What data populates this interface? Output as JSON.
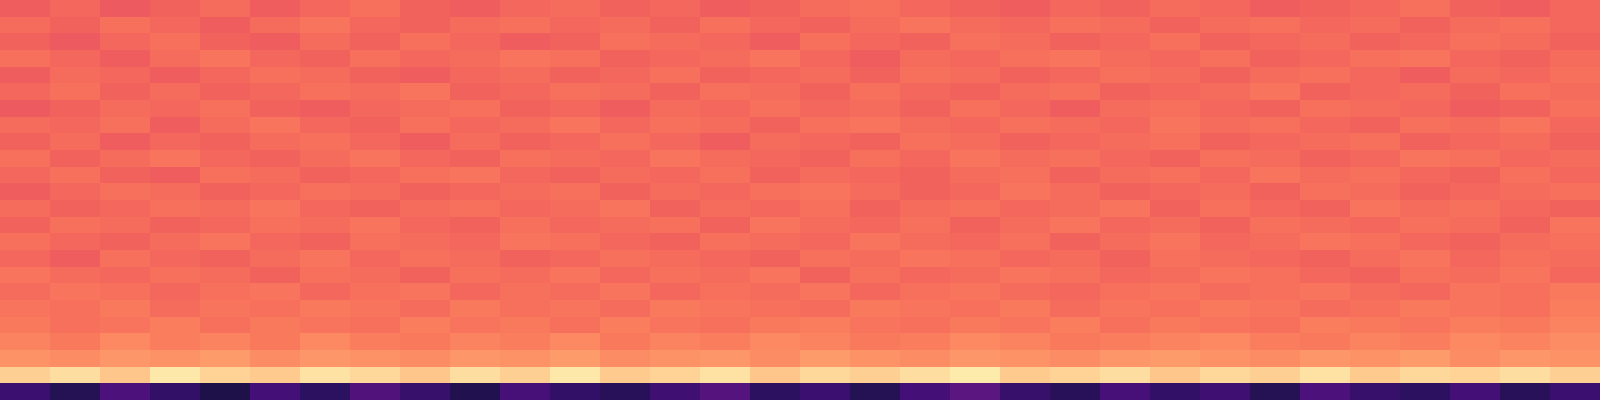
{
  "chart_data": {
    "type": "heatmap",
    "color": "magma",
    "tick_labels": false,
    "values": [
      [
        0.66,
        0.68,
        0.65,
        0.67,
        0.69,
        0.66,
        0.68,
        0.7,
        0.67,
        0.66,
        0.68,
        0.69,
        0.67,
        0.68,
        0.66,
        0.67,
        0.69,
        0.7,
        0.68,
        0.67,
        0.66,
        0.68,
        0.67,
        0.69,
        0.68,
        0.66,
        0.67,
        0.68,
        0.7,
        0.67,
        0.66,
        0.68
      ],
      [
        0.69,
        0.67,
        0.7,
        0.68,
        0.66,
        0.69,
        0.71,
        0.68,
        0.67,
        0.69,
        0.7,
        0.68,
        0.69,
        0.67,
        0.7,
        0.68,
        0.67,
        0.69,
        0.71,
        0.69,
        0.68,
        0.7,
        0.69,
        0.67,
        0.69,
        0.7,
        0.68,
        0.69,
        0.67,
        0.69,
        0.7,
        0.68
      ],
      [
        0.67,
        0.65,
        0.68,
        0.7,
        0.67,
        0.66,
        0.69,
        0.67,
        0.7,
        0.68,
        0.66,
        0.67,
        0.7,
        0.69,
        0.68,
        0.66,
        0.7,
        0.68,
        0.67,
        0.7,
        0.69,
        0.67,
        0.68,
        0.7,
        0.67,
        0.68,
        0.69,
        0.67,
        0.68,
        0.7,
        0.69,
        0.67
      ],
      [
        0.7,
        0.68,
        0.66,
        0.69,
        0.71,
        0.68,
        0.67,
        0.7,
        0.68,
        0.69,
        0.71,
        0.7,
        0.67,
        0.68,
        0.69,
        0.71,
        0.68,
        0.66,
        0.69,
        0.68,
        0.7,
        0.71,
        0.69,
        0.68,
        0.7,
        0.67,
        0.68,
        0.7,
        0.71,
        0.68,
        0.67,
        0.69
      ],
      [
        0.66,
        0.69,
        0.68,
        0.66,
        0.68,
        0.7,
        0.69,
        0.67,
        0.66,
        0.68,
        0.69,
        0.67,
        0.68,
        0.7,
        0.67,
        0.68,
        0.69,
        0.67,
        0.7,
        0.69,
        0.67,
        0.68,
        0.7,
        0.69,
        0.67,
        0.69,
        0.7,
        0.68,
        0.66,
        0.69,
        0.68,
        0.7
      ],
      [
        0.68,
        0.7,
        0.67,
        0.69,
        0.67,
        0.68,
        0.7,
        0.69,
        0.71,
        0.67,
        0.68,
        0.7,
        0.69,
        0.67,
        0.7,
        0.69,
        0.67,
        0.7,
        0.68,
        0.67,
        0.69,
        0.7,
        0.67,
        0.68,
        0.69,
        0.71,
        0.67,
        0.68,
        0.69,
        0.67,
        0.7,
        0.69
      ],
      [
        0.65,
        0.67,
        0.69,
        0.68,
        0.7,
        0.67,
        0.66,
        0.68,
        0.69,
        0.7,
        0.67,
        0.68,
        0.66,
        0.69,
        0.68,
        0.7,
        0.68,
        0.69,
        0.67,
        0.7,
        0.68,
        0.66,
        0.69,
        0.7,
        0.68,
        0.67,
        0.7,
        0.69,
        0.68,
        0.66,
        0.67,
        0.7
      ],
      [
        0.69,
        0.68,
        0.7,
        0.66,
        0.69,
        0.71,
        0.68,
        0.67,
        0.7,
        0.68,
        0.69,
        0.71,
        0.68,
        0.7,
        0.69,
        0.67,
        0.7,
        0.71,
        0.69,
        0.68,
        0.7,
        0.69,
        0.68,
        0.71,
        0.69,
        0.7,
        0.68,
        0.67,
        0.7,
        0.69,
        0.71,
        0.68
      ],
      [
        0.67,
        0.69,
        0.66,
        0.68,
        0.67,
        0.69,
        0.7,
        0.68,
        0.66,
        0.69,
        0.67,
        0.68,
        0.7,
        0.68,
        0.66,
        0.69,
        0.68,
        0.67,
        0.7,
        0.69,
        0.67,
        0.68,
        0.69,
        0.7,
        0.67,
        0.68,
        0.69,
        0.7,
        0.67,
        0.68,
        0.69,
        0.67
      ],
      [
        0.7,
        0.67,
        0.69,
        0.71,
        0.68,
        0.67,
        0.69,
        0.71,
        0.68,
        0.67,
        0.7,
        0.69,
        0.68,
        0.71,
        0.69,
        0.68,
        0.67,
        0.7,
        0.68,
        0.71,
        0.69,
        0.7,
        0.68,
        0.67,
        0.7,
        0.69,
        0.67,
        0.68,
        0.71,
        0.7,
        0.68,
        0.69
      ],
      [
        0.68,
        0.7,
        0.67,
        0.66,
        0.7,
        0.69,
        0.67,
        0.68,
        0.7,
        0.71,
        0.68,
        0.67,
        0.69,
        0.68,
        0.7,
        0.67,
        0.69,
        0.68,
        0.67,
        0.69,
        0.7,
        0.67,
        0.69,
        0.7,
        0.68,
        0.71,
        0.69,
        0.7,
        0.68,
        0.67,
        0.7,
        0.68
      ],
      [
        0.66,
        0.68,
        0.7,
        0.69,
        0.67,
        0.68,
        0.7,
        0.69,
        0.67,
        0.68,
        0.69,
        0.7,
        0.67,
        0.69,
        0.68,
        0.7,
        0.71,
        0.69,
        0.67,
        0.68,
        0.71,
        0.69,
        0.67,
        0.68,
        0.69,
        0.67,
        0.7,
        0.69,
        0.67,
        0.68,
        0.69,
        0.7
      ],
      [
        0.69,
        0.67,
        0.68,
        0.7,
        0.69,
        0.71,
        0.68,
        0.67,
        0.69,
        0.7,
        0.68,
        0.69,
        0.71,
        0.67,
        0.69,
        0.68,
        0.7,
        0.67,
        0.69,
        0.7,
        0.68,
        0.69,
        0.71,
        0.67,
        0.7,
        0.68,
        0.67,
        0.71,
        0.69,
        0.7,
        0.68,
        0.67
      ],
      [
        0.67,
        0.7,
        0.69,
        0.67,
        0.68,
        0.7,
        0.69,
        0.71,
        0.68,
        0.67,
        0.7,
        0.68,
        0.69,
        0.7,
        0.67,
        0.71,
        0.69,
        0.68,
        0.7,
        0.67,
        0.69,
        0.71,
        0.68,
        0.69,
        0.67,
        0.7,
        0.69,
        0.68,
        0.7,
        0.69,
        0.67,
        0.71
      ],
      [
        0.7,
        0.68,
        0.67,
        0.69,
        0.71,
        0.68,
        0.67,
        0.7,
        0.69,
        0.68,
        0.71,
        0.7,
        0.68,
        0.67,
        0.7,
        0.69,
        0.68,
        0.71,
        0.69,
        0.68,
        0.7,
        0.67,
        0.69,
        0.71,
        0.68,
        0.69,
        0.71,
        0.7,
        0.68,
        0.67,
        0.69,
        0.7
      ],
      [
        0.68,
        0.66,
        0.7,
        0.68,
        0.67,
        0.69,
        0.71,
        0.68,
        0.7,
        0.69,
        0.67,
        0.68,
        0.7,
        0.69,
        0.68,
        0.67,
        0.7,
        0.69,
        0.71,
        0.7,
        0.68,
        0.69,
        0.67,
        0.7,
        0.69,
        0.68,
        0.67,
        0.69,
        0.71,
        0.68,
        0.7,
        0.69
      ],
      [
        0.71,
        0.69,
        0.68,
        0.7,
        0.69,
        0.67,
        0.7,
        0.69,
        0.67,
        0.7,
        0.69,
        0.71,
        0.68,
        0.7,
        0.69,
        0.71,
        0.67,
        0.7,
        0.68,
        0.69,
        0.71,
        0.7,
        0.68,
        0.69,
        0.71,
        0.7,
        0.68,
        0.67,
        0.7,
        0.69,
        0.71,
        0.68
      ],
      [
        0.69,
        0.71,
        0.7,
        0.68,
        0.7,
        0.71,
        0.68,
        0.7,
        0.71,
        0.68,
        0.7,
        0.69,
        0.71,
        0.68,
        0.7,
        0.69,
        0.71,
        0.68,
        0.7,
        0.71,
        0.69,
        0.68,
        0.7,
        0.71,
        0.69,
        0.7,
        0.71,
        0.69,
        0.68,
        0.71,
        0.7,
        0.72
      ],
      [
        0.71,
        0.7,
        0.72,
        0.69,
        0.71,
        0.7,
        0.72,
        0.71,
        0.69,
        0.72,
        0.7,
        0.71,
        0.69,
        0.72,
        0.71,
        0.7,
        0.69,
        0.72,
        0.71,
        0.7,
        0.72,
        0.69,
        0.71,
        0.7,
        0.72,
        0.71,
        0.69,
        0.7,
        0.72,
        0.71,
        0.7,
        0.73
      ],
      [
        0.72,
        0.7,
        0.71,
        0.73,
        0.7,
        0.72,
        0.71,
        0.7,
        0.73,
        0.71,
        0.72,
        0.7,
        0.73,
        0.71,
        0.7,
        0.72,
        0.73,
        0.71,
        0.7,
        0.72,
        0.71,
        0.73,
        0.7,
        0.72,
        0.71,
        0.7,
        0.73,
        0.72,
        0.71,
        0.73,
        0.72,
        0.74
      ],
      [
        0.74,
        0.72,
        0.75,
        0.73,
        0.74,
        0.72,
        0.75,
        0.73,
        0.72,
        0.74,
        0.73,
        0.75,
        0.72,
        0.74,
        0.73,
        0.75,
        0.74,
        0.72,
        0.73,
        0.75,
        0.74,
        0.72,
        0.73,
        0.74,
        0.75,
        0.73,
        0.72,
        0.74,
        0.73,
        0.75,
        0.74,
        0.76
      ],
      [
        0.77,
        0.76,
        0.78,
        0.77,
        0.79,
        0.76,
        0.78,
        0.77,
        0.76,
        0.78,
        0.77,
        0.79,
        0.76,
        0.77,
        0.78,
        0.76,
        0.79,
        0.77,
        0.76,
        0.78,
        0.77,
        0.76,
        0.78,
        0.79,
        0.77,
        0.76,
        0.78,
        0.77,
        0.79,
        0.76,
        0.78,
        0.77
      ],
      [
        0.9,
        0.93,
        0.88,
        0.95,
        0.91,
        0.89,
        0.94,
        0.92,
        0.88,
        0.93,
        0.9,
        0.95,
        0.89,
        0.91,
        0.94,
        0.88,
        0.92,
        0.9,
        0.93,
        0.96,
        0.89,
        0.91,
        0.93,
        0.88,
        0.92,
        0.9,
        0.94,
        0.89,
        0.92,
        0.91,
        0.93,
        0.9
      ],
      [
        0.2,
        0.15,
        0.24,
        0.18,
        0.13,
        0.22,
        0.17,
        0.25,
        0.19,
        0.14,
        0.23,
        0.18,
        0.16,
        0.21,
        0.26,
        0.17,
        0.2,
        0.15,
        0.22,
        0.28,
        0.19,
        0.16,
        0.23,
        0.18,
        0.21,
        0.15,
        0.24,
        0.19,
        0.17,
        0.22,
        0.16,
        0.2
      ]
    ]
  }
}
